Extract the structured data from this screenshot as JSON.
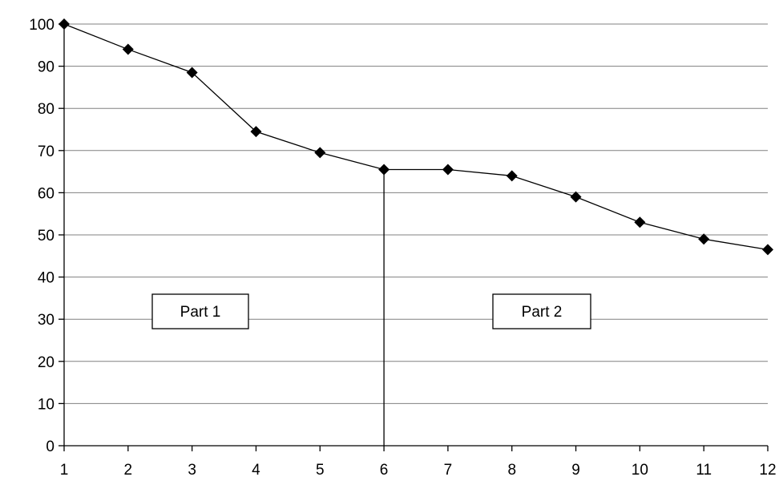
{
  "chart_data": {
    "type": "line",
    "title": "",
    "xlabel": "",
    "ylabel": "",
    "x": [
      1,
      2,
      3,
      4,
      5,
      6,
      7,
      8,
      9,
      10,
      11,
      12
    ],
    "series": [
      {
        "values": [
          100,
          94,
          88.5,
          74.5,
          69.5,
          65.5,
          65.5,
          64,
          59,
          53,
          49,
          46.5
        ]
      }
    ],
    "xlim": [
      1,
      12
    ],
    "ylim": [
      0,
      100
    ],
    "yticks": [
      0,
      10,
      20,
      30,
      40,
      50,
      60,
      70,
      80,
      90,
      100
    ],
    "xticks": [
      1,
      2,
      3,
      4,
      5,
      6,
      7,
      8,
      9,
      10,
      11,
      12
    ],
    "grid": "horizontal",
    "legend": "none",
    "marker": "diamond",
    "colors": {
      "line": "#000000",
      "grid": "#808080",
      "marker": "#000000"
    },
    "annotations": {
      "divider_at_x": 6,
      "part_labels": [
        {
          "text": "Part 1"
        },
        {
          "text": "Part 2"
        }
      ]
    }
  }
}
